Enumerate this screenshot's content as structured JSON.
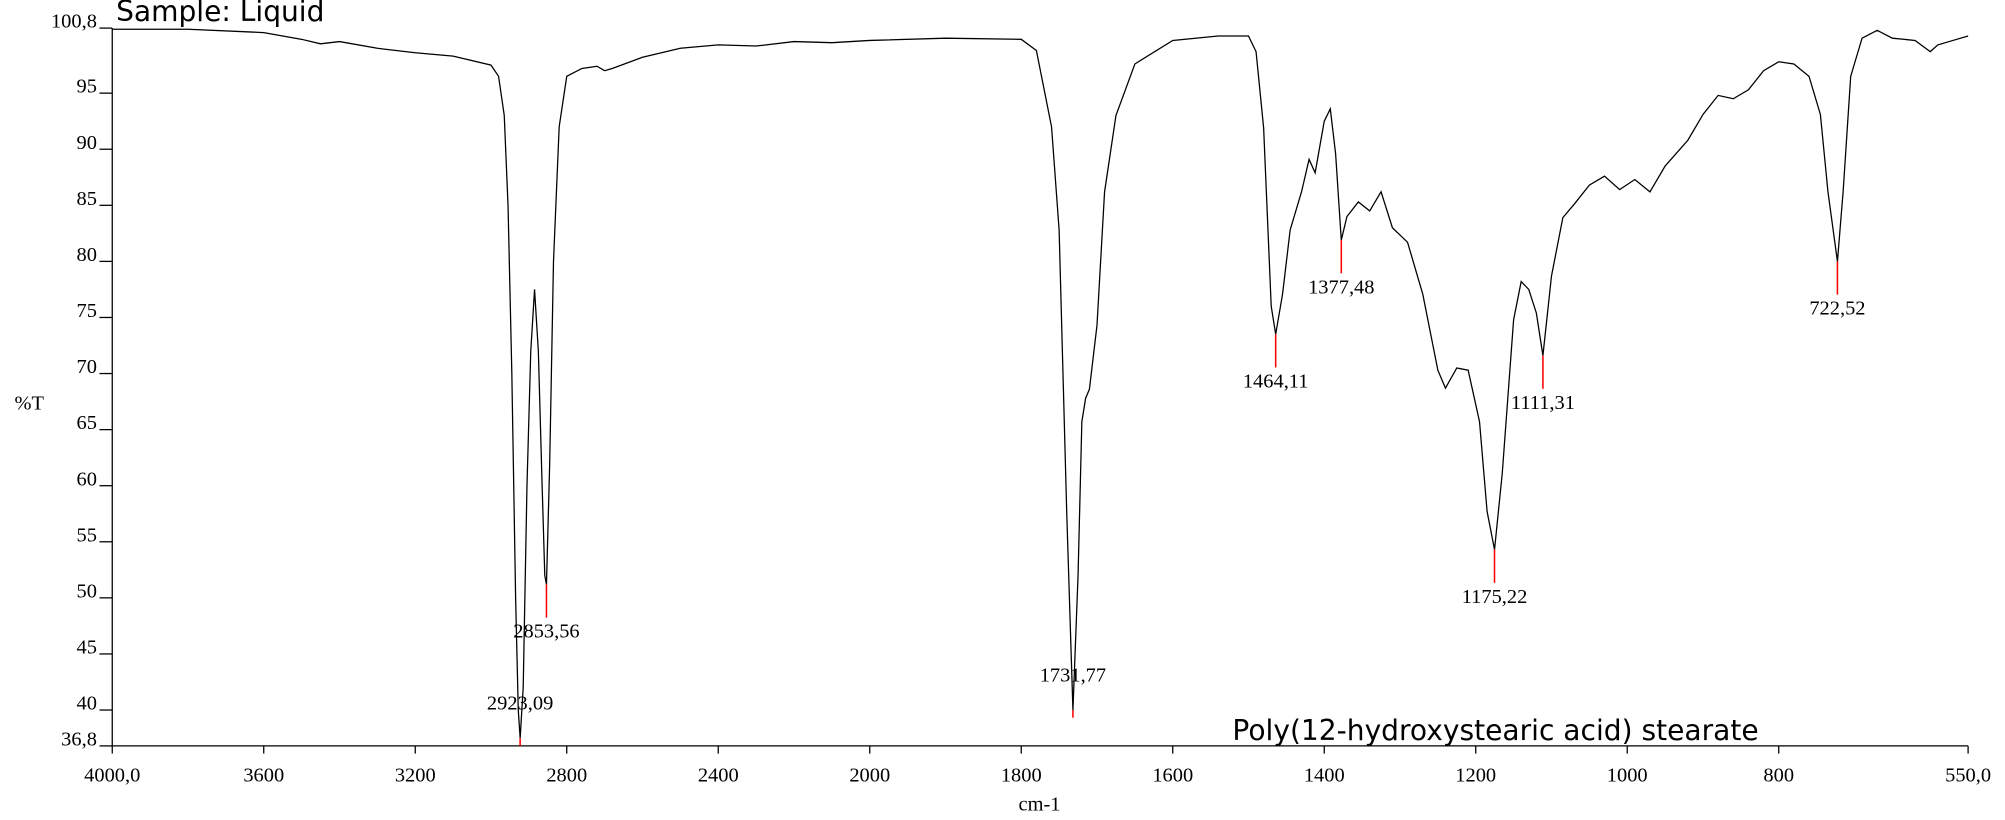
{
  "chart_data": {
    "type": "line",
    "title": "Sample: Liquid",
    "annotation": "Poly(12-hydroxystearic acid) stearate",
    "x_label": "cm-1",
    "y_label": "%T",
    "color": "#000000",
    "peak_color": "#ff0000",
    "x_scale_break": 2000,
    "xlim": [
      4000,
      550
    ],
    "xticks": [
      {
        "value": 4000,
        "label": "4000,0"
      },
      3600,
      3200,
      2800,
      2400,
      2000,
      1800,
      1600,
      1400,
      1200,
      1000,
      800,
      {
        "value": 550,
        "label": "550,0"
      }
    ],
    "ylim": [
      36.8,
      100.8
    ],
    "yticks": [
      {
        "value": 36.8,
        "label": "36,8"
      },
      40,
      45,
      50,
      55,
      60,
      65,
      70,
      75,
      80,
      85,
      90,
      95,
      {
        "value": 100.8,
        "label": "100,8"
      }
    ],
    "x": [
      4000,
      3800,
      3600,
      3500,
      3450,
      3400,
      3300,
      3200,
      3100,
      3000,
      2980,
      2965,
      2955,
      2945,
      2935,
      2928,
      2923,
      2915,
      2905,
      2895,
      2885,
      2875,
      2865,
      2858,
      2853.56,
      2845,
      2835,
      2820,
      2800,
      2760,
      2720,
      2700,
      2680,
      2600,
      2500,
      2400,
      2300,
      2200,
      2100,
      2000,
      1900,
      1800,
      1780,
      1760,
      1750,
      1740,
      1731.77,
      1725,
      1720,
      1715,
      1710,
      1700,
      1690,
      1675,
      1650,
      1600,
      1540,
      1500,
      1490,
      1480,
      1470,
      1464.11,
      1455,
      1445,
      1430,
      1420,
      1412,
      1400,
      1392,
      1385,
      1377.48,
      1370,
      1355,
      1340,
      1325,
      1310,
      1290,
      1270,
      1250,
      1240,
      1225,
      1210,
      1195,
      1185,
      1175.22,
      1165,
      1150,
      1140,
      1130,
      1120,
      1111.31,
      1100,
      1085,
      1070,
      1050,
      1030,
      1010,
      990,
      970,
      950,
      920,
      900,
      880,
      860,
      840,
      820,
      800,
      780,
      760,
      745,
      735,
      722.52,
      715,
      705,
      690,
      670,
      650,
      620,
      600,
      590,
      570,
      550
    ],
    "values": [
      100.7,
      100.7,
      100.4,
      99.8,
      99.4,
      99.6,
      99.0,
      98.6,
      98.3,
      97.5,
      96.5,
      93,
      85,
      70,
      50,
      40,
      37.5,
      42,
      60,
      72,
      77.5,
      72,
      60,
      52,
      51.2,
      62,
      80,
      92,
      96.5,
      97.2,
      97.4,
      97.0,
      97.2,
      98.2,
      99.0,
      99.3,
      99.2,
      99.6,
      99.5,
      99.7,
      99.9,
      99.8,
      98.8,
      92,
      82.8,
      57.7,
      40,
      52,
      65.7,
      67.8,
      68.6,
      74.3,
      86.2,
      93,
      97.6,
      99.7,
      100.1,
      100.1,
      98.7,
      91.9,
      76,
      73.5,
      77.1,
      82.8,
      86.2,
      89.1,
      87.9,
      92.5,
      93.6,
      89.6,
      81.9,
      84,
      85.3,
      84.5,
      86.2,
      83,
      81.7,
      77.1,
      70.3,
      68.7,
      70.5,
      70.3,
      65.7,
      57.7,
      54.3,
      61.1,
      74.8,
      78.2,
      77.5,
      75.4,
      71.6,
      78.7,
      83.9,
      85.1,
      86.8,
      87.6,
      86.4,
      87.3,
      86.2,
      88.5,
      90.8,
      93.1,
      94.8,
      94.5,
      95.3,
      97,
      97.8,
      97.6,
      96.5,
      93.1,
      86.2,
      80,
      86.2,
      96.5,
      99.9,
      100.6,
      99.9,
      99.7,
      98.7,
      99.3,
      99.7,
      100.1
    ],
    "peaks": [
      {
        "value": 2923.09,
        "label": "2923,09"
      },
      {
        "value": 2853.56,
        "label": "2853,56"
      },
      {
        "value": 1731.77,
        "label": "1731,77"
      },
      {
        "value": 1464.11,
        "label": "1464,11"
      },
      {
        "value": 1377.48,
        "label": "1377,48"
      },
      {
        "value": 1175.22,
        "label": "1175,22"
      },
      {
        "value": 1111.31,
        "label": "1111,31"
      },
      {
        "value": 722.52,
        "label": "722,52"
      }
    ],
    "peak_transmittance": [
      37.5,
      51.2,
      40,
      73.5,
      81.9,
      54.3,
      71.6,
      80
    ]
  }
}
